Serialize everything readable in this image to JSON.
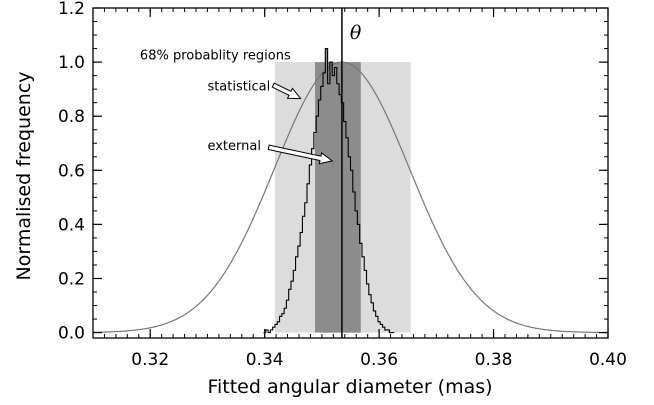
{
  "chart_data": {
    "type": "histogram",
    "xlabel": "Fitted angular diameter (mas)",
    "ylabel": "Normalised frequency",
    "xlim": [
      0.31,
      0.4
    ],
    "ylim": [
      -0.02,
      1.2
    ],
    "xticks": [
      0.32,
      0.34,
      0.36,
      0.38,
      0.4
    ],
    "xtick_labels": [
      "0.32",
      "0.34",
      "0.36",
      "0.38",
      "0.40"
    ],
    "yticks": [
      0.0,
      0.2,
      0.4,
      0.6,
      0.8,
      1.0,
      1.2
    ],
    "ytick_labels": [
      "0.0",
      "0.2",
      "0.4",
      "0.6",
      "0.8",
      "1.0",
      "1.2"
    ],
    "grid": false,
    "bands": [
      {
        "name": "statistical",
        "x0": 0.3488,
        "x1": 0.3568,
        "color": "#8c8c8c"
      },
      {
        "name": "external",
        "x0": 0.3418,
        "x1": 0.3655,
        "color": "#dcdcdc"
      }
    ],
    "gaussian": {
      "mean": 0.3535,
      "sigma": 0.0118,
      "peak": 1.0,
      "color": "#777777"
    },
    "theta": {
      "x": 0.3535,
      "label": "θ"
    },
    "histogram": {
      "bin_start": 0.3398,
      "bin_width": 0.0004,
      "counts": [
        0.0,
        0.01,
        0.0,
        0.01,
        0.02,
        0.03,
        0.04,
        0.06,
        0.07,
        0.09,
        0.12,
        0.16,
        0.19,
        0.23,
        0.28,
        0.32,
        0.37,
        0.43,
        0.48,
        0.55,
        0.62,
        0.68,
        0.74,
        0.8,
        0.86,
        0.91,
        0.96,
        1.05,
        0.92,
        1.0,
        0.95,
        0.98,
        0.92,
        0.88,
        0.85,
        0.78,
        0.72,
        0.65,
        0.6,
        0.52,
        0.45,
        0.4,
        0.33,
        0.28,
        0.23,
        0.18,
        0.14,
        0.11,
        0.08,
        0.06,
        0.04,
        0.03,
        0.02,
        0.01,
        0.01,
        0.0,
        0.0
      ]
    },
    "annotations": [
      {
        "text": "68% probablity regions",
        "x": 0.3182,
        "y": 1.01
      },
      {
        "text": "statistical",
        "x": 0.33,
        "y": 0.895
      },
      {
        "text": "external",
        "x": 0.33,
        "y": 0.675
      }
    ],
    "arrows": [
      {
        "from": [
          0.3415,
          0.915
        ],
        "to": [
          0.3463,
          0.865
        ]
      },
      {
        "from": [
          0.3407,
          0.685
        ],
        "to": [
          0.3518,
          0.635
        ]
      }
    ]
  }
}
